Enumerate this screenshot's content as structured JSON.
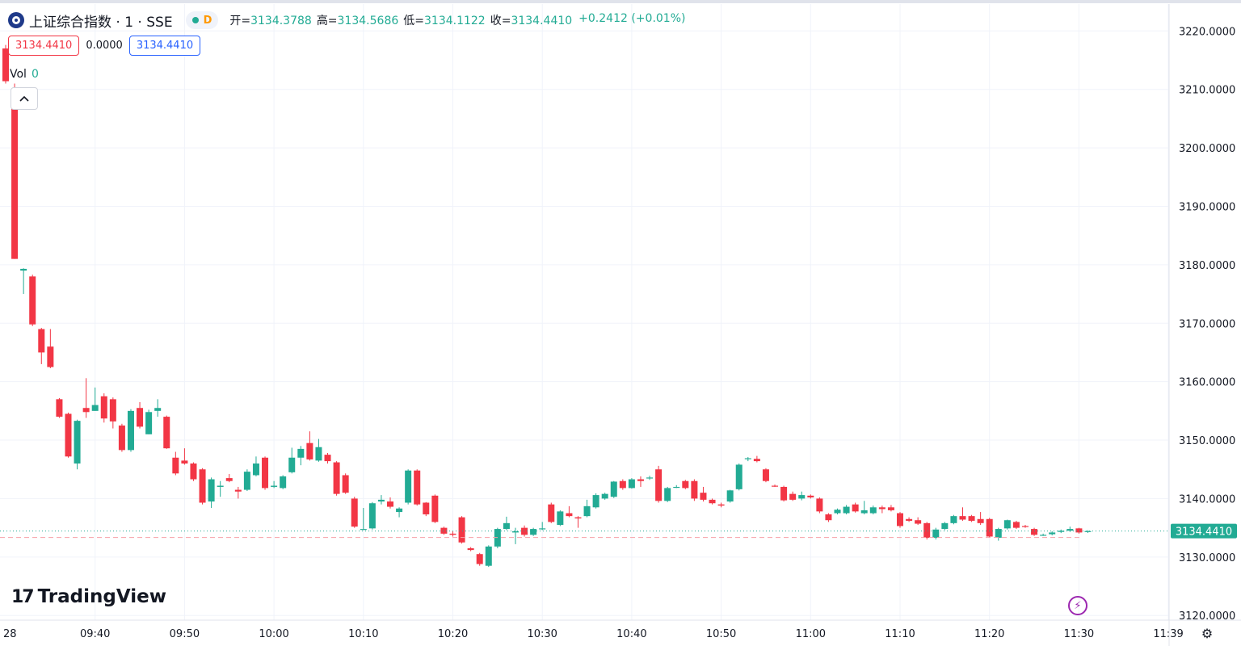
{
  "header": {
    "title": "上证综合指数 · 1 · SSE",
    "status_letter": "D",
    "open_label": "开=",
    "open": "3134.3788",
    "high_label": "高=",
    "high": "3134.5686",
    "low_label": "低=",
    "low": "3134.1122",
    "close_label": "收=",
    "close": "3134.4410",
    "change": "+0.2412 (+0.01%)"
  },
  "values_row": {
    "left_value": "3134.4410",
    "middle_value": "0.0000",
    "right_value": "3134.4410"
  },
  "volume": {
    "label": "Vol",
    "value": "0"
  },
  "branding": {
    "logo_mark": "17",
    "logo_text": "TradingView"
  },
  "icons": {
    "collapse": "chevron-up-icon",
    "bolt": "lightning-icon",
    "settings": "gear-icon"
  },
  "colors": {
    "up": "#22ab94",
    "down": "#f23645",
    "grid": "#f0f3fa",
    "price_label_bg": "#22ab94",
    "bolt": "#9c27b0"
  },
  "chart_data": {
    "type": "candlestick",
    "yaxis_ticks": [
      "3220.0000",
      "3210.0000",
      "3200.0000",
      "3190.0000",
      "3180.0000",
      "3170.0000",
      "3160.0000",
      "3150.0000",
      "3140.0000",
      "3130.0000",
      "3120.0000"
    ],
    "ylim": [
      3119.2,
      3224.6
    ],
    "xaxis_ticks": [
      "28",
      "09:40",
      "09:50",
      "10:00",
      "10:10",
      "10:20",
      "10:30",
      "10:40",
      "10:50",
      "11:00",
      "11:10",
      "11:20",
      "11:30",
      "11:39"
    ],
    "last_price_label": "3134.4410",
    "candles": [
      {
        "t": "09:30",
        "o": 3217.0,
        "h": 3217.6,
        "l": 3211.0,
        "c": 3211.4
      },
      {
        "t": "09:31",
        "o": 3209.0,
        "h": 3211.0,
        "l": 3181.0,
        "c": 3181.0
      },
      {
        "t": "09:32",
        "o": 3179.0,
        "h": 3179.4,
        "l": 3175.0,
        "c": 3179.3
      },
      {
        "t": "09:33",
        "o": 3178.0,
        "h": 3178.3,
        "l": 3169.5,
        "c": 3169.8
      },
      {
        "t": "09:34",
        "o": 3169.0,
        "h": 3169.2,
        "l": 3163.0,
        "c": 3165.0
      },
      {
        "t": "09:35",
        "o": 3166.0,
        "h": 3169.0,
        "l": 3162.3,
        "c": 3162.5
      },
      {
        "t": "09:36",
        "o": 3157.0,
        "h": 3157.2,
        "l": 3153.8,
        "c": 3154.0
      },
      {
        "t": "09:37",
        "o": 3154.5,
        "h": 3154.7,
        "l": 3147.0,
        "c": 3147.2
      },
      {
        "t": "09:38",
        "o": 3146.0,
        "h": 3153.5,
        "l": 3145.0,
        "c": 3153.3
      },
      {
        "t": "09:39",
        "o": 3155.5,
        "h": 3160.6,
        "l": 3153.8,
        "c": 3154.8
      },
      {
        "t": "09:40",
        "o": 3155.0,
        "h": 3159.0,
        "l": 3155.0,
        "c": 3156.0
      },
      {
        "t": "09:41",
        "o": 3157.5,
        "h": 3158.0,
        "l": 3153.0,
        "c": 3153.7
      },
      {
        "t": "09:42",
        "o": 3157.0,
        "h": 3157.3,
        "l": 3152.0,
        "c": 3153.2
      },
      {
        "t": "09:43",
        "o": 3152.5,
        "h": 3152.8,
        "l": 3148.0,
        "c": 3148.3
      },
      {
        "t": "09:44",
        "o": 3148.3,
        "h": 3155.3,
        "l": 3148.0,
        "c": 3155.0
      },
      {
        "t": "09:45",
        "o": 3155.5,
        "h": 3156.5,
        "l": 3152.0,
        "c": 3152.3
      },
      {
        "t": "09:46",
        "o": 3151.0,
        "h": 3155.2,
        "l": 3151.0,
        "c": 3154.8
      },
      {
        "t": "09:47",
        "o": 3155.0,
        "h": 3157.0,
        "l": 3154.0,
        "c": 3155.5
      },
      {
        "t": "09:48",
        "o": 3154.0,
        "h": 3154.2,
        "l": 3148.5,
        "c": 3148.6
      },
      {
        "t": "09:49",
        "o": 3147.0,
        "h": 3148.0,
        "l": 3144.0,
        "c": 3144.3
      },
      {
        "t": "09:50",
        "o": 3146.5,
        "h": 3148.6,
        "l": 3145.8,
        "c": 3146.0
      },
      {
        "t": "09:51",
        "o": 3146.0,
        "h": 3146.2,
        "l": 3143.0,
        "c": 3143.3
      },
      {
        "t": "09:52",
        "o": 3145.0,
        "h": 3145.2,
        "l": 3139.0,
        "c": 3139.3
      },
      {
        "t": "09:53",
        "o": 3139.5,
        "h": 3143.6,
        "l": 3138.4,
        "c": 3143.3
      },
      {
        "t": "09:54",
        "o": 3142.0,
        "h": 3143.0,
        "l": 3140.3,
        "c": 3142.2
      },
      {
        "t": "09:55",
        "o": 3143.5,
        "h": 3144.2,
        "l": 3142.8,
        "c": 3143.0
      },
      {
        "t": "09:56",
        "o": 3141.5,
        "h": 3142.0,
        "l": 3140.0,
        "c": 3141.2
      },
      {
        "t": "09:57",
        "o": 3141.5,
        "h": 3145.0,
        "l": 3141.3,
        "c": 3144.6
      },
      {
        "t": "09:58",
        "o": 3144.0,
        "h": 3147.2,
        "l": 3143.8,
        "c": 3146.0
      },
      {
        "t": "09:59",
        "o": 3147.0,
        "h": 3147.2,
        "l": 3141.5,
        "c": 3141.8
      },
      {
        "t": "10:00",
        "o": 3142.0,
        "h": 3143.0,
        "l": 3141.8,
        "c": 3142.2
      },
      {
        "t": "10:01",
        "o": 3141.8,
        "h": 3144.0,
        "l": 3141.6,
        "c": 3143.8
      },
      {
        "t": "10:02",
        "o": 3144.5,
        "h": 3148.7,
        "l": 3144.3,
        "c": 3147.0
      },
      {
        "t": "10:03",
        "o": 3147.0,
        "h": 3149.0,
        "l": 3145.7,
        "c": 3148.5
      },
      {
        "t": "10:04",
        "o": 3149.5,
        "h": 3151.5,
        "l": 3146.5,
        "c": 3146.7
      },
      {
        "t": "10:05",
        "o": 3146.5,
        "h": 3150.2,
        "l": 3146.3,
        "c": 3148.8
      },
      {
        "t": "10:06",
        "o": 3147.5,
        "h": 3147.8,
        "l": 3146.0,
        "c": 3146.4
      },
      {
        "t": "10:07",
        "o": 3146.2,
        "h": 3146.4,
        "l": 3140.5,
        "c": 3140.8
      },
      {
        "t": "10:08",
        "o": 3144.0,
        "h": 3144.3,
        "l": 3140.8,
        "c": 3141.0
      },
      {
        "t": "10:09",
        "o": 3140.0,
        "h": 3140.3,
        "l": 3135.0,
        "c": 3135.2
      },
      {
        "t": "10:10",
        "o": 3134.8,
        "h": 3138.4,
        "l": 3134.6,
        "c": 3134.8
      },
      {
        "t": "10:11",
        "o": 3134.9,
        "h": 3139.4,
        "l": 3134.7,
        "c": 3139.2
      },
      {
        "t": "10:12",
        "o": 3139.5,
        "h": 3140.6,
        "l": 3139.0,
        "c": 3139.8
      },
      {
        "t": "10:13",
        "o": 3139.5,
        "h": 3140.2,
        "l": 3138.3,
        "c": 3138.6
      },
      {
        "t": "10:14",
        "o": 3137.7,
        "h": 3138.5,
        "l": 3136.8,
        "c": 3138.3
      },
      {
        "t": "10:15",
        "o": 3139.3,
        "h": 3145.0,
        "l": 3139.0,
        "c": 3144.8
      },
      {
        "t": "10:16",
        "o": 3144.8,
        "h": 3145.0,
        "l": 3138.8,
        "c": 3139.0
      },
      {
        "t": "10:17",
        "o": 3139.3,
        "h": 3139.4,
        "l": 3137.0,
        "c": 3137.3
      },
      {
        "t": "10:18",
        "o": 3140.5,
        "h": 3140.7,
        "l": 3135.8,
        "c": 3136.0
      },
      {
        "t": "10:19",
        "o": 3135.0,
        "h": 3135.2,
        "l": 3133.8,
        "c": 3134.0
      },
      {
        "t": "10:20",
        "o": 3134.0,
        "h": 3134.4,
        "l": 3133.5,
        "c": 3133.8
      },
      {
        "t": "10:21",
        "o": 3136.8,
        "h": 3137.0,
        "l": 3132.3,
        "c": 3132.5
      },
      {
        "t": "10:22",
        "o": 3131.5,
        "h": 3131.7,
        "l": 3131.0,
        "c": 3131.2
      },
      {
        "t": "10:23",
        "o": 3130.5,
        "h": 3130.7,
        "l": 3128.5,
        "c": 3128.8
      },
      {
        "t": "10:24",
        "o": 3128.5,
        "h": 3132.0,
        "l": 3128.3,
        "c": 3131.8
      },
      {
        "t": "10:25",
        "o": 3131.8,
        "h": 3135.0,
        "l": 3131.5,
        "c": 3134.8
      },
      {
        "t": "10:26",
        "o": 3134.8,
        "h": 3136.9,
        "l": 3134.6,
        "c": 3135.8
      },
      {
        "t": "10:27",
        "o": 3134.2,
        "h": 3135.0,
        "l": 3132.2,
        "c": 3134.4
      },
      {
        "t": "10:28",
        "o": 3135.0,
        "h": 3135.4,
        "l": 3133.5,
        "c": 3133.8
      },
      {
        "t": "10:29",
        "o": 3133.8,
        "h": 3135.0,
        "l": 3133.6,
        "c": 3134.8
      },
      {
        "t": "10:30",
        "o": 3134.8,
        "h": 3136.0,
        "l": 3134.6,
        "c": 3134.9
      },
      {
        "t": "10:31",
        "o": 3139.0,
        "h": 3139.3,
        "l": 3135.8,
        "c": 3136.0
      },
      {
        "t": "10:32",
        "o": 3135.5,
        "h": 3138.0,
        "l": 3135.3,
        "c": 3137.8
      },
      {
        "t": "10:33",
        "o": 3137.5,
        "h": 3138.7,
        "l": 3136.8,
        "c": 3137.0
      },
      {
        "t": "10:34",
        "o": 3136.8,
        "h": 3137.0,
        "l": 3135.0,
        "c": 3136.6
      },
      {
        "t": "10:35",
        "o": 3137.0,
        "h": 3139.8,
        "l": 3136.8,
        "c": 3138.7
      },
      {
        "t": "10:36",
        "o": 3138.5,
        "h": 3140.9,
        "l": 3138.3,
        "c": 3140.6
      },
      {
        "t": "10:37",
        "o": 3140.0,
        "h": 3141.0,
        "l": 3139.8,
        "c": 3140.8
      },
      {
        "t": "10:38",
        "o": 3140.3,
        "h": 3143.0,
        "l": 3140.1,
        "c": 3142.9
      },
      {
        "t": "10:39",
        "o": 3143.0,
        "h": 3143.3,
        "l": 3141.5,
        "c": 3141.8
      },
      {
        "t": "10:40",
        "o": 3141.8,
        "h": 3143.5,
        "l": 3141.7,
        "c": 3143.3
      },
      {
        "t": "10:41",
        "o": 3143.3,
        "h": 3143.8,
        "l": 3142.0,
        "c": 3143.0
      },
      {
        "t": "10:42",
        "o": 3143.5,
        "h": 3143.9,
        "l": 3143.2,
        "c": 3143.6
      },
      {
        "t": "10:43",
        "o": 3145.0,
        "h": 3145.6,
        "l": 3139.3,
        "c": 3139.6
      },
      {
        "t": "10:44",
        "o": 3139.6,
        "h": 3142.0,
        "l": 3139.4,
        "c": 3141.8
      },
      {
        "t": "10:45",
        "o": 3142.0,
        "h": 3142.3,
        "l": 3141.8,
        "c": 3142.0
      },
      {
        "t": "10:46",
        "o": 3143.0,
        "h": 3143.2,
        "l": 3141.6,
        "c": 3141.8
      },
      {
        "t": "10:47",
        "o": 3143.0,
        "h": 3143.3,
        "l": 3139.6,
        "c": 3140.0
      },
      {
        "t": "10:48",
        "o": 3141.0,
        "h": 3142.0,
        "l": 3139.5,
        "c": 3139.8
      },
      {
        "t": "10:49",
        "o": 3139.8,
        "h": 3140.0,
        "l": 3139.0,
        "c": 3139.2
      },
      {
        "t": "10:50",
        "o": 3139.0,
        "h": 3139.3,
        "l": 3138.5,
        "c": 3138.8
      },
      {
        "t": "10:51",
        "o": 3139.5,
        "h": 3141.5,
        "l": 3139.3,
        "c": 3141.4
      },
      {
        "t": "10:52",
        "o": 3141.6,
        "h": 3146.0,
        "l": 3141.4,
        "c": 3145.8
      },
      {
        "t": "10:53",
        "o": 3146.8,
        "h": 3147.1,
        "l": 3146.4,
        "c": 3146.9
      },
      {
        "t": "10:54",
        "o": 3146.8,
        "h": 3147.3,
        "l": 3146.2,
        "c": 3146.4
      },
      {
        "t": "10:55",
        "o": 3145.0,
        "h": 3145.2,
        "l": 3142.8,
        "c": 3143.0
      },
      {
        "t": "10:56",
        "o": 3142.2,
        "h": 3142.4,
        "l": 3142.0,
        "c": 3142.1
      },
      {
        "t": "10:57",
        "o": 3142.0,
        "h": 3142.2,
        "l": 3139.5,
        "c": 3139.7
      },
      {
        "t": "10:58",
        "o": 3140.8,
        "h": 3141.2,
        "l": 3139.6,
        "c": 3139.8
      },
      {
        "t": "10:59",
        "o": 3140.0,
        "h": 3141.2,
        "l": 3139.7,
        "c": 3140.6
      },
      {
        "t": "11:00",
        "o": 3140.5,
        "h": 3140.7,
        "l": 3140.0,
        "c": 3140.2
      },
      {
        "t": "11:01",
        "o": 3140.0,
        "h": 3140.2,
        "l": 3137.5,
        "c": 3137.8
      },
      {
        "t": "11:02",
        "o": 3137.3,
        "h": 3137.5,
        "l": 3136.0,
        "c": 3136.3
      },
      {
        "t": "11:03",
        "o": 3137.5,
        "h": 3138.3,
        "l": 3137.3,
        "c": 3138.1
      },
      {
        "t": "11:04",
        "o": 3137.5,
        "h": 3138.9,
        "l": 3137.3,
        "c": 3138.6
      },
      {
        "t": "11:05",
        "o": 3139.0,
        "h": 3139.3,
        "l": 3137.6,
        "c": 3137.8
      },
      {
        "t": "11:06",
        "o": 3137.5,
        "h": 3139.6,
        "l": 3137.3,
        "c": 3138.0
      },
      {
        "t": "11:07",
        "o": 3137.5,
        "h": 3138.8,
        "l": 3137.3,
        "c": 3138.5
      },
      {
        "t": "11:08",
        "o": 3138.5,
        "h": 3138.8,
        "l": 3137.5,
        "c": 3138.2
      },
      {
        "t": "11:09",
        "o": 3138.5,
        "h": 3138.9,
        "l": 3137.8,
        "c": 3138.0
      },
      {
        "t": "11:10",
        "o": 3137.5,
        "h": 3137.7,
        "l": 3135.0,
        "c": 3135.3
      },
      {
        "t": "11:11",
        "o": 3136.5,
        "h": 3136.8,
        "l": 3136.0,
        "c": 3136.2
      },
      {
        "t": "11:12",
        "o": 3136.3,
        "h": 3136.8,
        "l": 3135.5,
        "c": 3135.7
      },
      {
        "t": "11:13",
        "o": 3135.8,
        "h": 3136.0,
        "l": 3133.0,
        "c": 3133.3
      },
      {
        "t": "11:14",
        "o": 3133.3,
        "h": 3135.0,
        "l": 3133.0,
        "c": 3134.7
      },
      {
        "t": "11:15",
        "o": 3134.8,
        "h": 3136.0,
        "l": 3134.6,
        "c": 3135.8
      },
      {
        "t": "11:16",
        "o": 3135.8,
        "h": 3137.2,
        "l": 3135.6,
        "c": 3137.0
      },
      {
        "t": "11:17",
        "o": 3137.0,
        "h": 3138.5,
        "l": 3136.2,
        "c": 3136.4
      },
      {
        "t": "11:18",
        "o": 3137.0,
        "h": 3137.2,
        "l": 3136.0,
        "c": 3136.2
      },
      {
        "t": "11:19",
        "o": 3136.5,
        "h": 3137.7,
        "l": 3135.5,
        "c": 3135.8
      },
      {
        "t": "11:20",
        "o": 3136.5,
        "h": 3136.7,
        "l": 3133.3,
        "c": 3133.5
      },
      {
        "t": "11:21",
        "o": 3133.3,
        "h": 3135.0,
        "l": 3132.8,
        "c": 3134.8
      },
      {
        "t": "11:22",
        "o": 3134.9,
        "h": 3136.4,
        "l": 3134.7,
        "c": 3136.3
      },
      {
        "t": "11:23",
        "o": 3136.0,
        "h": 3136.2,
        "l": 3134.8,
        "c": 3135.0
      },
      {
        "t": "11:24",
        "o": 3135.3,
        "h": 3135.5,
        "l": 3135.0,
        "c": 3135.2
      },
      {
        "t": "11:25",
        "o": 3134.8,
        "h": 3135.0,
        "l": 3133.6,
        "c": 3133.8
      },
      {
        "t": "11:26",
        "o": 3133.8,
        "h": 3134.0,
        "l": 3133.6,
        "c": 3133.8
      },
      {
        "t": "11:27",
        "o": 3133.9,
        "h": 3134.4,
        "l": 3133.7,
        "c": 3134.2
      },
      {
        "t": "11:28",
        "o": 3134.3,
        "h": 3134.7,
        "l": 3134.1,
        "c": 3134.5
      },
      {
        "t": "11:29",
        "o": 3134.5,
        "h": 3135.2,
        "l": 3134.3,
        "c": 3134.8
      },
      {
        "t": "11:30",
        "o": 3134.9,
        "h": 3135.0,
        "l": 3134.0,
        "c": 3134.2
      },
      {
        "t": "11:31",
        "o": 3134.3788,
        "h": 3134.5686,
        "l": 3134.1122,
        "c": 3134.441
      }
    ]
  }
}
